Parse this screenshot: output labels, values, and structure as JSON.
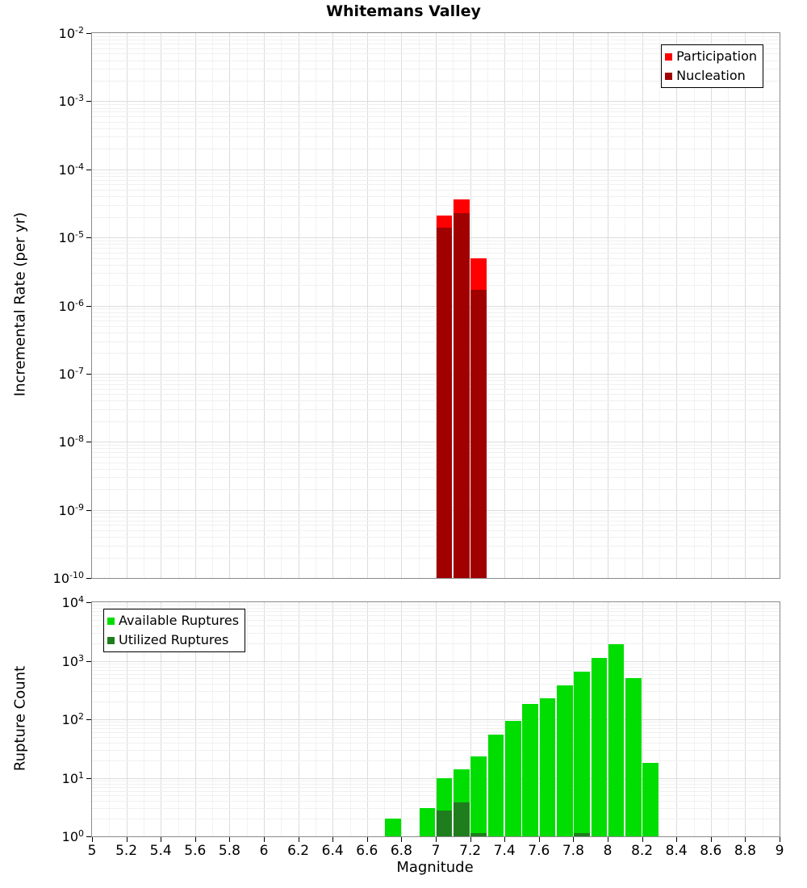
{
  "title": "Whitemans Valley",
  "axes": {
    "x_label": "Magnitude",
    "x_tick_values": [
      5,
      5.2,
      5.4,
      5.6,
      5.8,
      6,
      6.2,
      6.4,
      6.6,
      6.8,
      7,
      7.2,
      7.4,
      7.6,
      7.8,
      8,
      8.2,
      8.4,
      8.6,
      8.8,
      9
    ],
    "x_tick_labels": [
      "5",
      "5.2",
      "5.4",
      "5.6",
      "5.8",
      "6",
      "6.2",
      "6.4",
      "6.6",
      "6.8",
      "7",
      "7.2",
      "7.4",
      "7.6",
      "7.8",
      "8",
      "8.2",
      "8.4",
      "8.6",
      "8.8",
      "9"
    ]
  },
  "chart_data": [
    {
      "type": "bar",
      "title": "Whitemans Valley",
      "ylabel": "Incremental Rate (per yr)",
      "yscale": "log",
      "grid": true,
      "xlim": [
        5,
        9
      ],
      "ylim": [
        1e-10,
        0.01
      ],
      "y_tick_exponents": [
        -2,
        -3,
        -4,
        -5,
        -6,
        -7,
        -8,
        -9,
        -10
      ],
      "bar_width": 0.1,
      "baseline": 1e-10,
      "legend_position": "top-right",
      "series": [
        {
          "name": "Participation",
          "color": "#ff0000",
          "x": [
            7.05,
            7.15,
            7.25
          ],
          "values": [
            2.1e-05,
            3.6e-05,
            5e-06
          ]
        },
        {
          "name": "Nucleation",
          "color": "#a00000",
          "x": [
            7.05,
            7.15,
            7.25
          ],
          "values": [
            1.4e-05,
            2.3e-05,
            1.7e-06
          ]
        }
      ]
    },
    {
      "type": "bar",
      "ylabel": "Rupture Count",
      "xlabel": "Magnitude",
      "yscale": "log",
      "grid": true,
      "xlim": [
        5,
        9
      ],
      "ylim": [
        1,
        10000.0
      ],
      "y_tick_exponents": [
        4,
        3,
        2,
        1,
        0
      ],
      "bar_width": 0.1,
      "baseline": 1,
      "legend_position": "top-left",
      "series": [
        {
          "name": "Available Ruptures",
          "color": "#00dd00",
          "x": [
            6.75,
            6.95,
            7.05,
            7.15,
            7.25,
            7.35,
            7.45,
            7.55,
            7.65,
            7.75,
            7.85,
            7.95,
            8.05,
            8.15,
            8.25
          ],
          "values": [
            2,
            3,
            10,
            14,
            23,
            55,
            95,
            180,
            230,
            380,
            650,
            1100,
            1900,
            500,
            18
          ]
        },
        {
          "name": "Utilized Ruptures",
          "color": "#1e7e1e",
          "x": [
            7.05,
            7.15,
            7.25,
            7.85
          ],
          "values": [
            2.8,
            3.8,
            1.15,
            1.15
          ]
        }
      ]
    }
  ]
}
